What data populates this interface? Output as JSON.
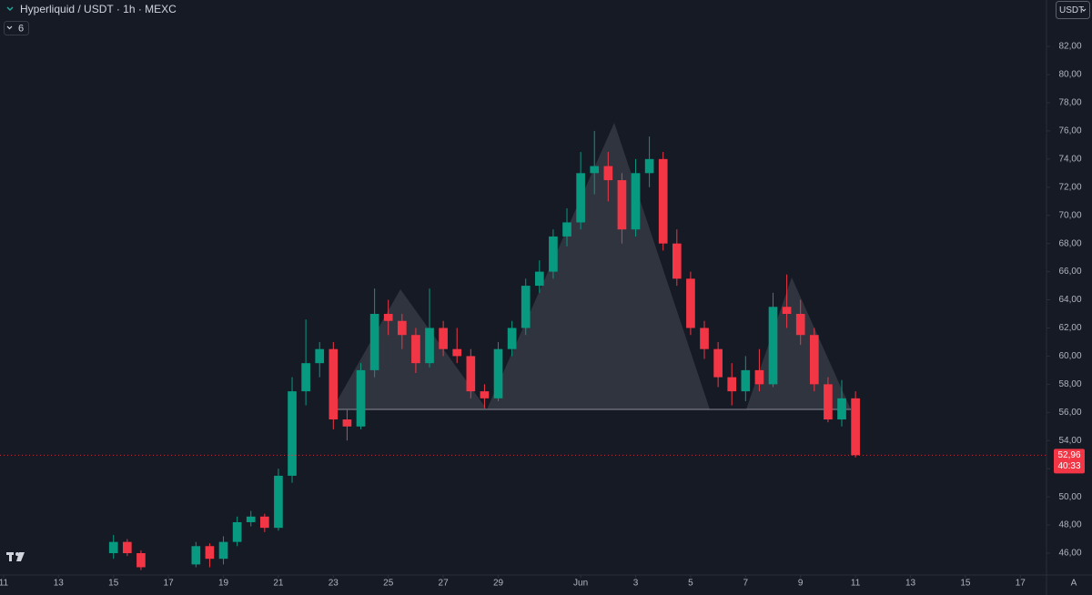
{
  "chart_data": {
    "type": "candlestick",
    "title": "Hyperliquid / USDT · 1h · MEXC",
    "indicator_count": 6,
    "currency": "USDT",
    "scale_button": "A",
    "countdown": "40:33",
    "last_price": {
      "value": 52.96,
      "label": "52,96"
    },
    "up_color": "#089981",
    "down_color": "#f23645",
    "grid": false,
    "x": [
      15,
      15.5,
      16,
      18,
      18.5,
      19,
      19.5,
      20,
      20.5,
      21,
      21.5,
      22,
      22.5,
      23,
      23.5,
      24,
      24.5,
      25,
      25.5,
      26,
      26.5,
      27,
      27.5,
      28,
      28.5,
      29,
      29.5,
      30,
      30.5,
      31,
      31.5,
      32,
      32.5,
      33,
      33.5,
      34,
      34.5,
      35,
      35.5,
      36,
      36.5,
      37,
      37.5,
      38,
      38.5,
      39,
      39.5,
      40,
      40.5,
      41,
      41.5,
      42
    ],
    "open": [
      46.0,
      46.8,
      46.0,
      45.2,
      46.5,
      45.6,
      46.8,
      48.2,
      48.6,
      47.8,
      51.5,
      57.5,
      59.5,
      60.5,
      55.5,
      55.0,
      59.0,
      63.0,
      62.5,
      61.5,
      59.5,
      62.0,
      60.5,
      60.0,
      57.5,
      57.0,
      60.5,
      62.0,
      65.0,
      66.0,
      68.5,
      69.5,
      73.0,
      73.5,
      72.5,
      69.0,
      73.0,
      74.0,
      68.0,
      65.5,
      62.0,
      60.5,
      58.5,
      57.5,
      59.0,
      58.0,
      63.5,
      63.0,
      61.5,
      58.0,
      55.5,
      57.0
    ],
    "high": [
      47.3,
      47.0,
      46.2,
      46.8,
      46.7,
      47.2,
      48.6,
      49.0,
      48.8,
      52.0,
      58.5,
      62.6,
      61.0,
      61.0,
      56.2,
      59.5,
      64.8,
      64.0,
      63.0,
      62.0,
      64.8,
      62.5,
      62.0,
      60.5,
      58.0,
      61.0,
      62.5,
      65.5,
      66.8,
      69.0,
      70.5,
      74.5,
      76.0,
      74.5,
      73.0,
      74.0,
      75.6,
      74.5,
      69.0,
      66.0,
      62.5,
      61.0,
      59.5,
      60.0,
      60.5,
      64.5,
      65.8,
      64.0,
      62.0,
      58.5,
      58.3,
      57.5
    ],
    "low": [
      45.6,
      45.8,
      44.8,
      45.0,
      45.0,
      45.2,
      46.5,
      47.9,
      47.5,
      47.6,
      51.0,
      56.5,
      58.5,
      54.8,
      54.0,
      54.8,
      58.5,
      61.5,
      60.5,
      58.8,
      59.2,
      60.0,
      59.5,
      57.0,
      56.3,
      56.8,
      60.0,
      61.5,
      64.5,
      65.5,
      67.8,
      69.0,
      71.5,
      71.0,
      68.0,
      68.5,
      72.0,
      67.5,
      65.0,
      61.5,
      59.8,
      57.8,
      56.5,
      56.8,
      57.5,
      57.8,
      62.0,
      60.8,
      57.5,
      55.3,
      55.0,
      52.8
    ],
    "close": [
      46.8,
      46.0,
      45.0,
      46.5,
      45.6,
      46.8,
      48.2,
      48.6,
      47.8,
      51.5,
      57.5,
      59.5,
      60.5,
      55.5,
      55.0,
      59.0,
      63.0,
      62.5,
      61.5,
      59.5,
      62.0,
      60.5,
      60.0,
      57.5,
      57.0,
      60.5,
      62.0,
      65.0,
      66.0,
      68.5,
      69.5,
      73.0,
      73.5,
      72.5,
      69.0,
      73.0,
      74.0,
      68.0,
      65.5,
      62.0,
      60.5,
      58.5,
      57.5,
      59.0,
      58.0,
      63.5,
      63.0,
      61.5,
      58.0,
      55.5,
      57.0,
      52.96
    ],
    "xlim": [
      10.87,
      48.95
    ],
    "ylim": [
      44.45,
      85.3
    ],
    "xticks": [
      11,
      13,
      15,
      17,
      19,
      21,
      23,
      25,
      27,
      29,
      {
        "value": 32,
        "label": "Jun"
      },
      {
        "value": 34,
        "label": "3"
      },
      {
        "value": 36,
        "label": "5"
      },
      {
        "value": 38,
        "label": "7"
      },
      {
        "value": 40,
        "label": "9"
      },
      {
        "value": 42,
        "label": "11"
      },
      {
        "value": 44,
        "label": "13"
      },
      {
        "value": 46,
        "label": "15"
      },
      {
        "value": 48,
        "label": "17"
      }
    ],
    "yticks": [
      {
        "value": 46,
        "label": "46,00"
      },
      {
        "value": 48,
        "label": "48,00"
      },
      {
        "value": 50,
        "label": "50,00"
      },
      {
        "value": 52,
        "label": "52,00"
      },
      {
        "value": 54,
        "label": "54,00"
      },
      {
        "value": 56,
        "label": "56,00"
      },
      {
        "value": 58,
        "label": "58,00"
      },
      {
        "value": 60,
        "label": "60,00"
      },
      {
        "value": 62,
        "label": "62,00"
      },
      {
        "value": 64,
        "label": "64,00"
      },
      {
        "value": 66,
        "label": "66,00"
      },
      {
        "value": 68,
        "label": "68,00"
      },
      {
        "value": 70,
        "label": "70,00"
      },
      {
        "value": 72,
        "label": "72,00"
      },
      {
        "value": 74,
        "label": "74,00"
      },
      {
        "value": 76,
        "label": "76,00"
      },
      {
        "value": 78,
        "label": "78,00"
      },
      {
        "value": 80,
        "label": "80,00"
      },
      {
        "value": 82,
        "label": "82,00"
      }
    ]
  }
}
